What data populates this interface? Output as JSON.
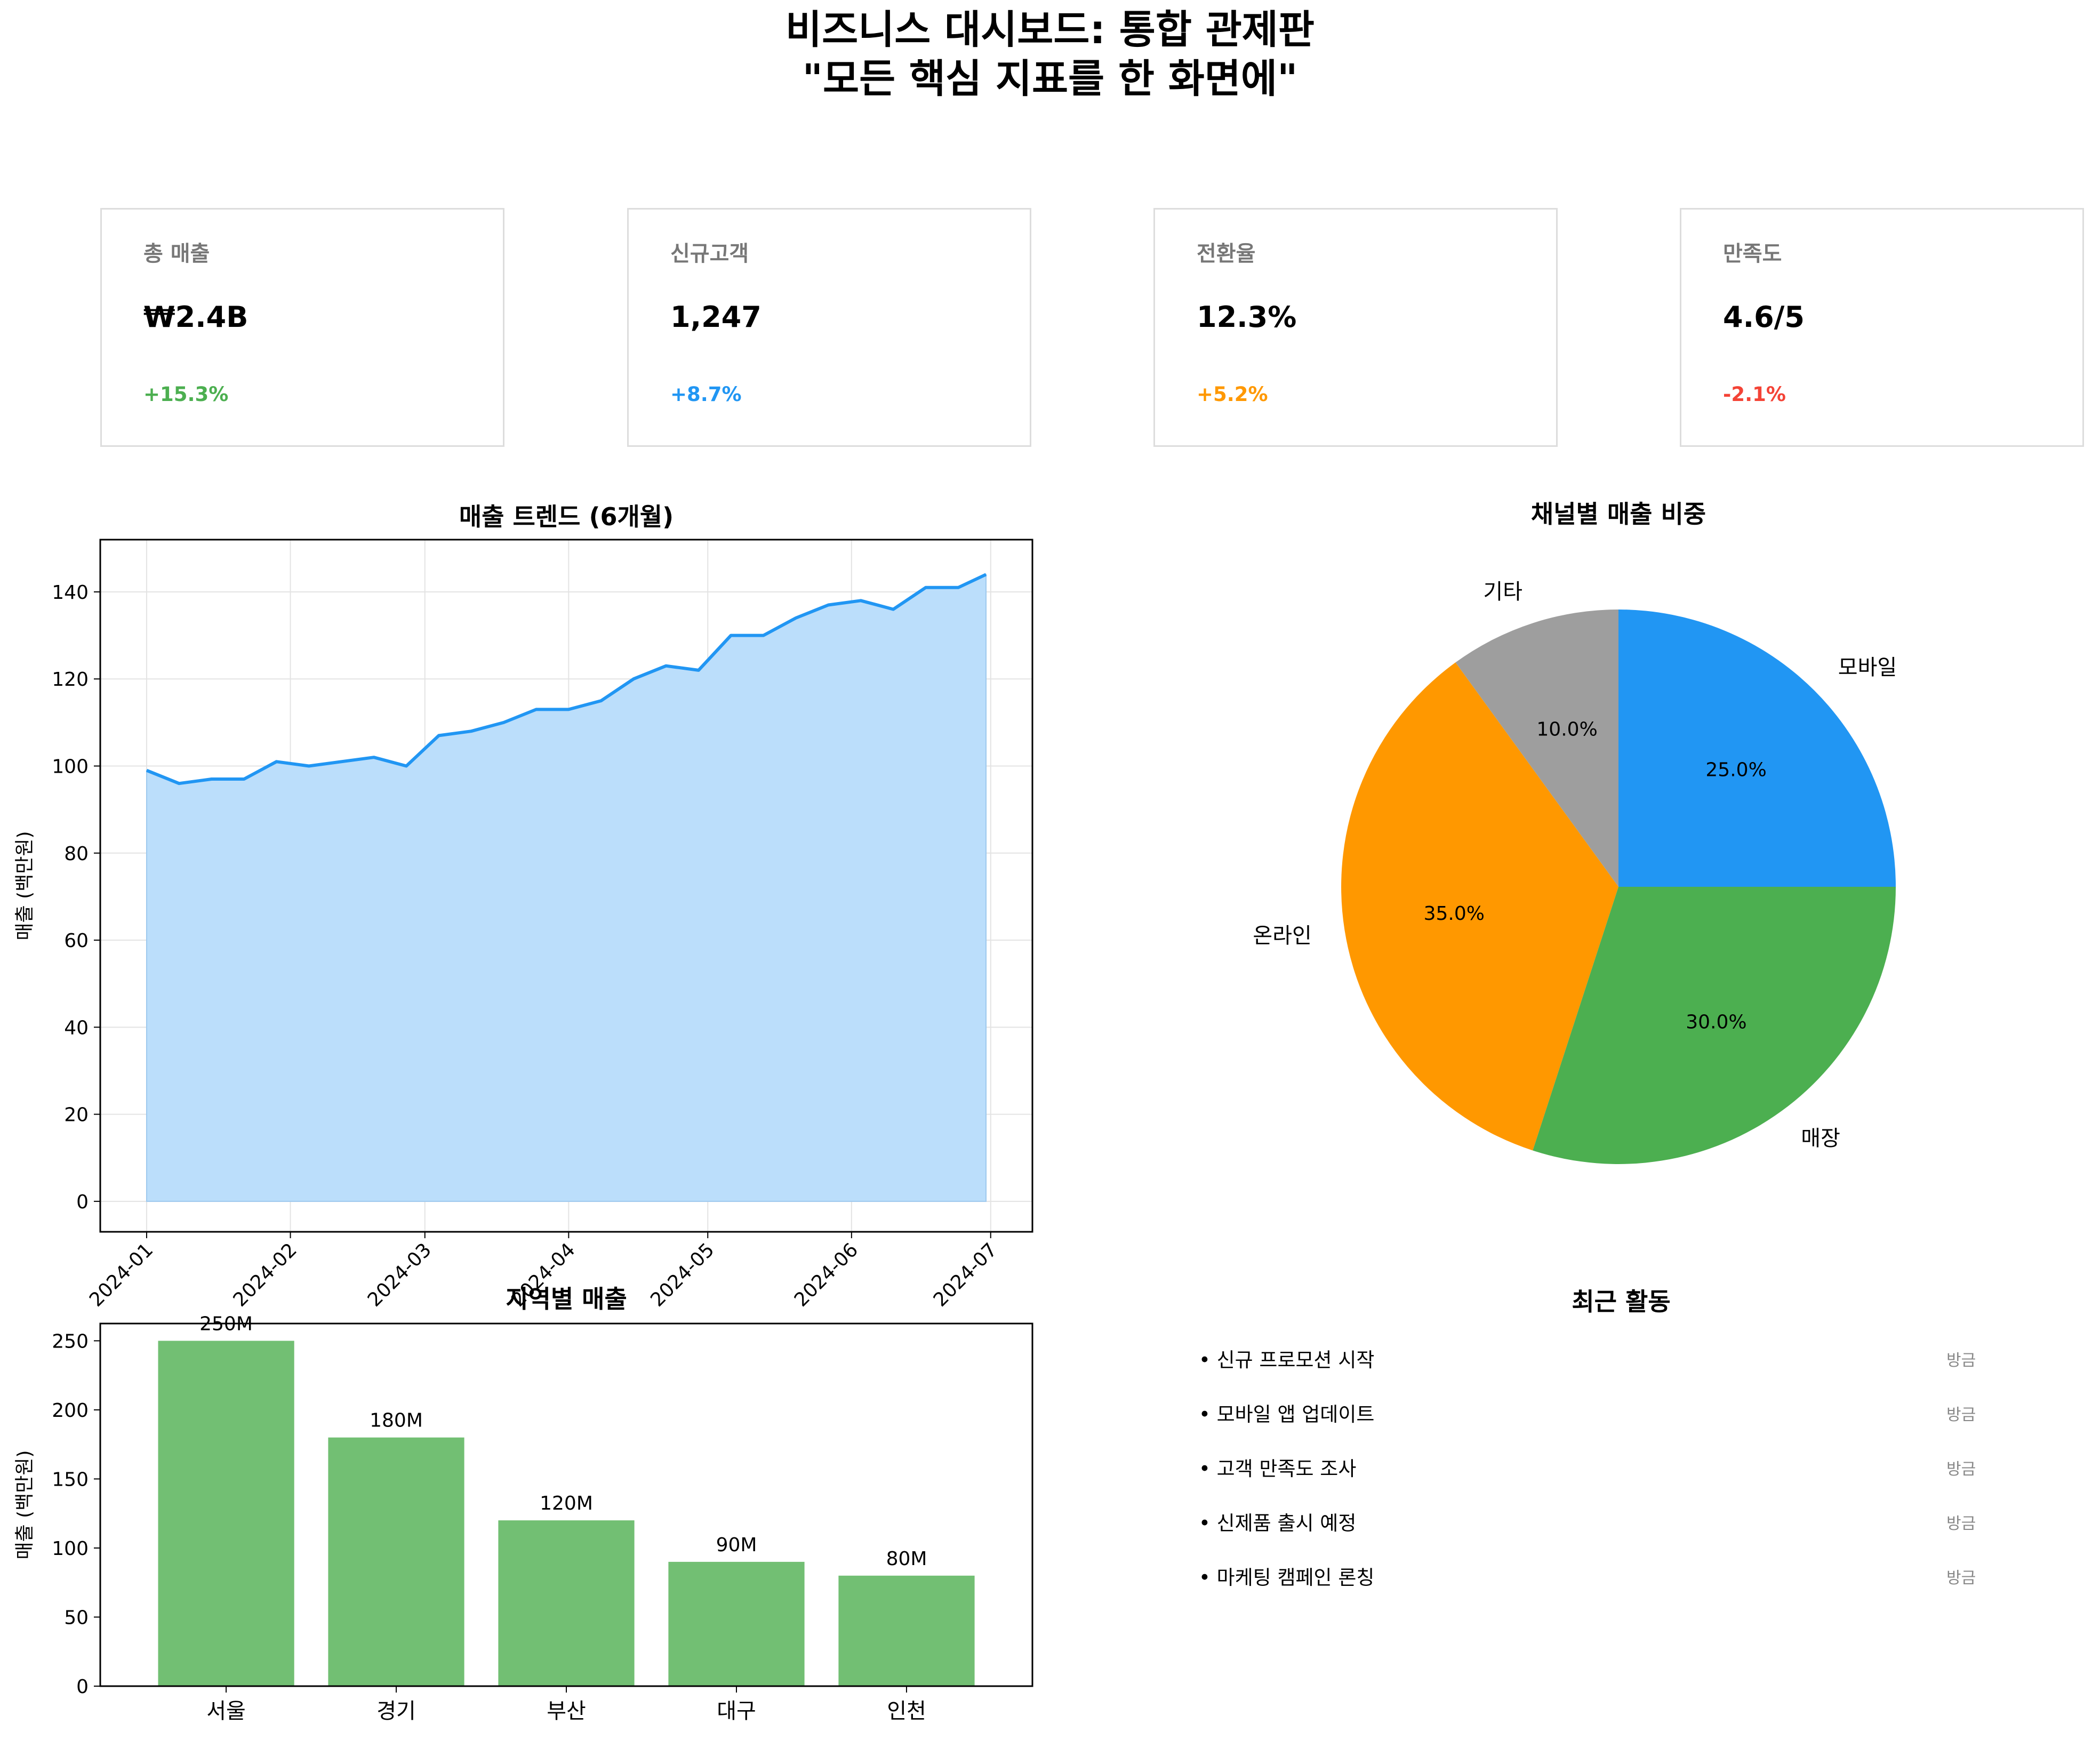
{
  "title": {
    "line1": "비즈니스 대시보드: 통합 관제판",
    "line2": "\"모든 핵심 지표를 한 화면에\""
  },
  "kpis": [
    {
      "label": "총 매출",
      "value": "₩2.4B",
      "change": "+15.3%",
      "color": "#4caf50"
    },
    {
      "label": "신규고객",
      "value": "1,247",
      "change": "+8.7%",
      "color": "#2196f3"
    },
    {
      "label": "전환율",
      "value": "12.3%",
      "change": "+5.2%",
      "color": "#ff9800"
    },
    {
      "label": "만족도",
      "value": "4.6/5",
      "change": "-2.1%",
      "color": "#f44336"
    }
  ],
  "chart_data": [
    {
      "type": "area",
      "title": "매출 트렌드 (6개월)",
      "ylabel": "매출 (백만원)",
      "xlabel": "",
      "x_range": [
        "2024-01-01",
        "2024-06-30"
      ],
      "xlim": [
        "2023-12-22",
        "2024-07-10"
      ],
      "ylim": [
        -7,
        152
      ],
      "yticks": [
        0,
        20,
        40,
        60,
        80,
        100,
        120,
        140
      ],
      "xticks": [
        "2024-01",
        "2024-02",
        "2024-03",
        "2024-04",
        "2024-05",
        "2024-06",
        "2024-07"
      ],
      "grid": true,
      "line_color": "#2196f3",
      "fill_color": "#bbdefb",
      "series": [
        {
          "x": [
            "2024-01-01",
            "2024-01-08",
            "2024-01-15",
            "2024-01-22",
            "2024-01-29",
            "2024-02-05",
            "2024-02-12",
            "2024-02-19",
            "2024-02-26",
            "2024-03-04",
            "2024-03-11",
            "2024-03-18",
            "2024-03-25",
            "2024-04-01",
            "2024-04-08",
            "2024-04-15",
            "2024-04-22",
            "2024-04-29",
            "2024-05-06",
            "2024-05-13",
            "2024-05-20",
            "2024-05-27",
            "2024-06-03",
            "2024-06-10",
            "2024-06-17",
            "2024-06-24",
            "2024-06-30"
          ],
          "y": [
            99,
            96,
            97,
            97,
            101,
            100,
            101,
            102,
            100,
            107,
            108,
            110,
            113,
            113,
            115,
            120,
            123,
            122,
            130,
            130,
            134,
            137,
            138,
            136,
            141,
            141,
            144
          ]
        }
      ]
    },
    {
      "type": "pie",
      "title": "채널별 매출 비중",
      "labels": [
        "기타",
        "온라인",
        "매장",
        "모바일"
      ],
      "values": [
        10.0,
        35.0,
        30.0,
        25.0
      ],
      "pct_labels": [
        "10.0%",
        "35.0%",
        "30.0%",
        "25.0%"
      ],
      "colors": [
        "#9e9e9e",
        "#ff9800",
        "#4caf50",
        "#2196f3"
      ]
    },
    {
      "type": "bar",
      "title": "지역별 매출",
      "ylabel": "매출 (백만원)",
      "xlabel": "",
      "categories": [
        "서울",
        "경기",
        "부산",
        "대구",
        "인천"
      ],
      "values": [
        250,
        180,
        120,
        90,
        80
      ],
      "value_labels": [
        "250M",
        "180M",
        "120M",
        "90M",
        "80M"
      ],
      "ylim": [
        0,
        262.5
      ],
      "yticks": [
        0,
        50,
        100,
        150,
        200,
        250
      ],
      "bar_color": "#72bf73"
    }
  ],
  "activity": {
    "title": "최근 활동",
    "items": [
      {
        "text": "• 신규 프로모션 시작",
        "time": "방금"
      },
      {
        "text": "• 모바일 앱 업데이트",
        "time": "방금"
      },
      {
        "text": "• 고객 만족도 조사",
        "time": "방금"
      },
      {
        "text": "• 신제품 출시 예정",
        "time": "방금"
      },
      {
        "text": "• 마케팅 캠페인 론칭",
        "time": "방금"
      }
    ]
  }
}
